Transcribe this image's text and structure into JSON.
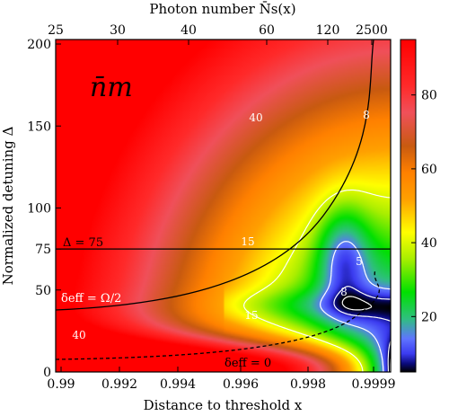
{
  "chart_data": {
    "type": "heatmap",
    "title_symbol": "n̄m",
    "xlabel": "Distance to threshold x",
    "x2label": "Photon number N̄s(x)",
    "ylabel": "Normalized detuning Δ",
    "xlim": [
      0.99,
      0.9999
    ],
    "ylim": [
      0,
      200
    ],
    "x_ticks": [
      0.99,
      0.992,
      0.994,
      0.996,
      0.998,
      0.9999
    ],
    "x_tick_labels": [
      "0.99",
      "0.992",
      "0.994",
      "0.996",
      "0.998",
      "0.9999"
    ],
    "y_ticks": [
      0,
      50,
      75,
      100,
      150,
      200
    ],
    "y_tick_labels": [
      "0",
      "50",
      "75",
      "100",
      "150",
      "200"
    ],
    "top_ticks": [
      25,
      30,
      40,
      60,
      120,
      2500
    ],
    "top_tick_labels": [
      "25",
      "30",
      "40",
      "60",
      "120",
      "2500"
    ],
    "colorbar": {
      "range": [
        5,
        95
      ],
      "ticks": [
        20,
        40,
        60,
        80
      ],
      "tick_labels": [
        "20",
        "40",
        "60",
        "80"
      ]
    },
    "contours": [
      {
        "level": 40,
        "label": "40"
      },
      {
        "level": 15,
        "label": "15"
      },
      {
        "level": 8,
        "label": "8"
      },
      {
        "level": 5,
        "label": "5"
      }
    ],
    "annotations": [
      {
        "text": "Δ = 75",
        "kind": "horizontal-line",
        "y": 75
      },
      {
        "text": "δeff = Ω/2",
        "kind": "curve"
      },
      {
        "text": "δeff = 0",
        "kind": "curve"
      }
    ]
  }
}
